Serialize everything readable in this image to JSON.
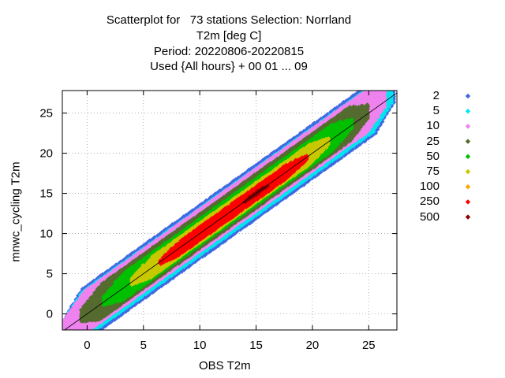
{
  "title_lines": [
    "Scatterplot for   73 stations Selection: Norrland",
    "T2m [deg C]",
    "Period: 20220806-20220815",
    "Used {All hours} + 00 01 ... 09"
  ],
  "chart_data": {
    "type": "scatter",
    "title": "Scatterplot for   73 stations Selection: Norrland",
    "subtitle": [
      "T2m [deg C]",
      "Period: 20220806-20220815",
      "Used {All hours} + 00 01 ... 09"
    ],
    "xlabel": "OBS T2m",
    "ylabel": "mnwc_cycling T2m",
    "xlim": [
      -2.2,
      27.5
    ],
    "ylim": [
      -2.0,
      27.8
    ],
    "xticks": [
      0,
      5,
      10,
      15,
      20,
      25
    ],
    "yticks": [
      0,
      5,
      10,
      15,
      20,
      25
    ],
    "grid": true,
    "diagonal_reference_line": true,
    "legend_position": "right",
    "legend": [
      {
        "label": "2",
        "color": "#4169e1"
      },
      {
        "label": "5",
        "color": "#00e5ee"
      },
      {
        "label": "10",
        "color": "#ee82ee"
      },
      {
        "label": "25",
        "color": "#556b2f"
      },
      {
        "label": "50",
        "color": "#00c000"
      },
      {
        "label": "75",
        "color": "#c8c800"
      },
      {
        "label": "100",
        "color": "#ffa500"
      },
      {
        "label": "250",
        "color": "#ff0000"
      },
      {
        "label": "500",
        "color": "#8b0000"
      }
    ],
    "density_bands": [
      {
        "category": "2",
        "bias": 0.3,
        "width": 3.4,
        "x_range": [
          -2.0,
          27.2
        ]
      },
      {
        "category": "5",
        "bias": 0.3,
        "width": 3.0,
        "x_range": [
          -2.0,
          27.0
        ]
      },
      {
        "category": "10",
        "bias": 0.4,
        "width": 2.6,
        "x_range": [
          -2.0,
          26.5
        ]
      },
      {
        "category": "25",
        "bias": 0.3,
        "width": 2.1,
        "x_range": [
          -0.5,
          25.0
        ]
      },
      {
        "category": "50",
        "bias": 0.2,
        "width": 1.6,
        "x_range": [
          1.5,
          23.5
        ]
      },
      {
        "category": "75",
        "bias": 0.1,
        "width": 1.2,
        "x_range": [
          4.0,
          21.5
        ]
      },
      {
        "category": "250",
        "bias": 0.0,
        "width": 0.8,
        "x_range": [
          6.5,
          19.5
        ]
      },
      {
        "category": "500",
        "bias": 0.0,
        "width": 0.2,
        "x_range": [
          14.0,
          16.0
        ]
      }
    ]
  }
}
